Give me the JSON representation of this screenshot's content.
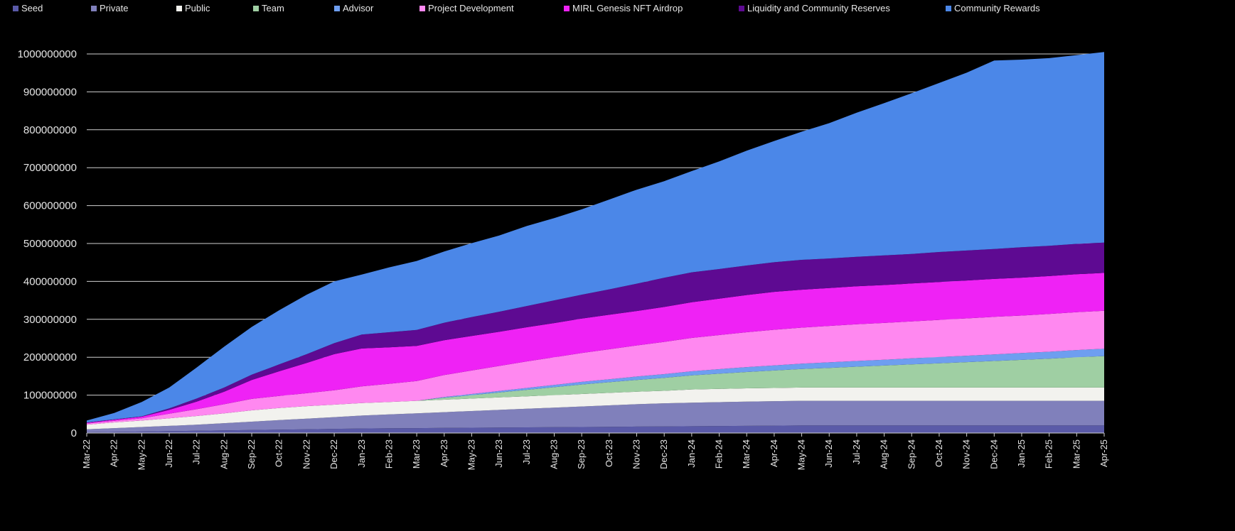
{
  "chart_data": {
    "type": "area",
    "stacked": true,
    "title": "",
    "xlabel": "",
    "ylabel": "",
    "ylim": [
      0,
      1000000000
    ],
    "yticks": [
      0,
      100000000,
      200000000,
      300000000,
      400000000,
      500000000,
      600000000,
      700000000,
      800000000,
      900000000,
      1000000000
    ],
    "grid": "horizontal",
    "legend_position": "top",
    "categories": [
      "Mar-22",
      "Apr-22",
      "May-22",
      "Jun-22",
      "Jul-22",
      "Aug-22",
      "Sep-22",
      "Oct-22",
      "Nov-22",
      "Dec-22",
      "Jan-23",
      "Feb-23",
      "Mar-23",
      "Apr-23",
      "May-23",
      "Jun-23",
      "Jul-23",
      "Aug-23",
      "Sep-23",
      "Oct-23",
      "Nov-23",
      "Dec-23",
      "Jan-24",
      "Feb-24",
      "Mar-24",
      "Apr-24",
      "May-24",
      "Jun-24",
      "Jul-24",
      "Aug-24",
      "Sep-24",
      "Oct-24",
      "Nov-24",
      "Dec-24",
      "Jan-25",
      "Feb-25",
      "Mar-25",
      "Apr-25"
    ],
    "series": [
      {
        "name": "Seed",
        "color": "#5a5aa8",
        "values": [
          2000000,
          3000000,
          4000000,
          5000000,
          6000000,
          7000000,
          8000000,
          9000000,
          10000000,
          11000000,
          12000000,
          12500000,
          13000000,
          13500000,
          14000000,
          14500000,
          15000000,
          15500000,
          16000000,
          16500000,
          17000000,
          17500000,
          18000000,
          18500000,
          19000000,
          19500000,
          20000000,
          20000000,
          20000000,
          20000000,
          20000000,
          20000000,
          20000000,
          20000000,
          20000000,
          20000000,
          20000000,
          20000000
        ]
      },
      {
        "name": "Private",
        "color": "#8080bb",
        "values": [
          8000000,
          10000000,
          12000000,
          14000000,
          16000000,
          19000000,
          22000000,
          25000000,
          28000000,
          31000000,
          34000000,
          36500000,
          39000000,
          41500000,
          44000000,
          46500000,
          49000000,
          51500000,
          54000000,
          56500000,
          59000000,
          61000000,
          62000000,
          63000000,
          64000000,
          64500000,
          65000000,
          65000000,
          65000000,
          65000000,
          65000000,
          65000000,
          65000000,
          65000000,
          65000000,
          65000000,
          65000000,
          65000000
        ]
      },
      {
        "name": "Public",
        "color": "#f2f2ee",
        "values": [
          12000000,
          15000000,
          17000000,
          20000000,
          23000000,
          26000000,
          30000000,
          32000000,
          33000000,
          33000000,
          33000000,
          33000000,
          33000000,
          33000000,
          33000000,
          33000000,
          33000000,
          33000000,
          33000000,
          33000000,
          33000000,
          33000000,
          35000000,
          35000000,
          35000000,
          35000000,
          35000000,
          35000000,
          35000000,
          35000000,
          35000000,
          35000000,
          35000000,
          35000000,
          35000000,
          35000000,
          35000000,
          35000000
        ]
      },
      {
        "name": "Team",
        "color": "#9fcfa3",
        "values": [
          0,
          0,
          0,
          0,
          0,
          0,
          0,
          0,
          0,
          0,
          0,
          0,
          0,
          5000000,
          9000000,
          13000000,
          17000000,
          21000000,
          25000000,
          28000000,
          31000000,
          34000000,
          37000000,
          40000000,
          43000000,
          46000000,
          49000000,
          52000000,
          55000000,
          58000000,
          61000000,
          64000000,
          67000000,
          70000000,
          73000000,
          76000000,
          80000000,
          83000000
        ]
      },
      {
        "name": "Advisor",
        "color": "#6e9ef0",
        "values": [
          0,
          0,
          0,
          0,
          0,
          0,
          0,
          0,
          0,
          0,
          0,
          0,
          0,
          2000000,
          3000000,
          4000000,
          5000000,
          6000000,
          7000000,
          8000000,
          9000000,
          10000000,
          11000000,
          12000000,
          13000000,
          13500000,
          14000000,
          14500000,
          15000000,
          15500000,
          16000000,
          16500000,
          17000000,
          17500000,
          18000000,
          18500000,
          19000000,
          19500000
        ]
      },
      {
        "name": "Project Development",
        "color": "#ff88f0",
        "values": [
          3000000,
          4000000,
          6000000,
          12000000,
          18000000,
          24000000,
          30000000,
          32000000,
          34000000,
          38000000,
          44000000,
          48000000,
          52000000,
          58000000,
          62000000,
          66000000,
          70000000,
          73000000,
          76000000,
          79000000,
          82000000,
          85000000,
          88000000,
          90000000,
          92000000,
          94000000,
          95000000,
          96000000,
          97000000,
          97000000,
          97500000,
          98000000,
          98500000,
          99000000,
          99000000,
          99500000,
          100000000,
          100000000
        ]
      },
      {
        "name": "MIRL Genesis NFT Airdrop",
        "color": "#ef22f5",
        "values": [
          2000000,
          3000000,
          4000000,
          10000000,
          20000000,
          33000000,
          50000000,
          65000000,
          80000000,
          95000000,
          100000000,
          96000000,
          93000000,
          92000000,
          91000000,
          90000000,
          90000000,
          90000000,
          91000000,
          91000000,
          91000000,
          92000000,
          94000000,
          96000000,
          98000000,
          100000000,
          100000000,
          100000000,
          100000000,
          100000000,
          100000000,
          100000000,
          100000000,
          100000000,
          100000000,
          100000000,
          100000000,
          100000000
        ]
      },
      {
        "name": "Liquidity and Community Reserves",
        "color": "#5e0a92",
        "values": [
          1000000,
          1000000,
          1000000,
          4000000,
          8000000,
          11000000,
          14000000,
          18000000,
          23000000,
          29000000,
          37000000,
          40000000,
          42000000,
          46000000,
          50000000,
          53000000,
          56000000,
          60000000,
          63000000,
          67000000,
          72000000,
          77000000,
          79000000,
          78000000,
          78000000,
          78000000,
          79000000,
          78000000,
          78000000,
          78000000,
          78000000,
          79000000,
          79000000,
          79000000,
          80000000,
          80000000,
          80000000,
          80000000
        ]
      },
      {
        "name": "Community Rewards",
        "color": "#4b87e8",
        "values": [
          5000000,
          17000000,
          38000000,
          55000000,
          82000000,
          108000000,
          126000000,
          143000000,
          157000000,
          163000000,
          158000000,
          171000000,
          182000000,
          188000000,
          195000000,
          201000000,
          211000000,
          217000000,
          225000000,
          237000000,
          248000000,
          255000000,
          267000000,
          284000000,
          303000000,
          320000000,
          338000000,
          357000000,
          380000000,
          402000000,
          424000000,
          446000000,
          469000000,
          497000000,
          495000000,
          495000000,
          498000000,
          502500000
        ]
      }
    ]
  }
}
